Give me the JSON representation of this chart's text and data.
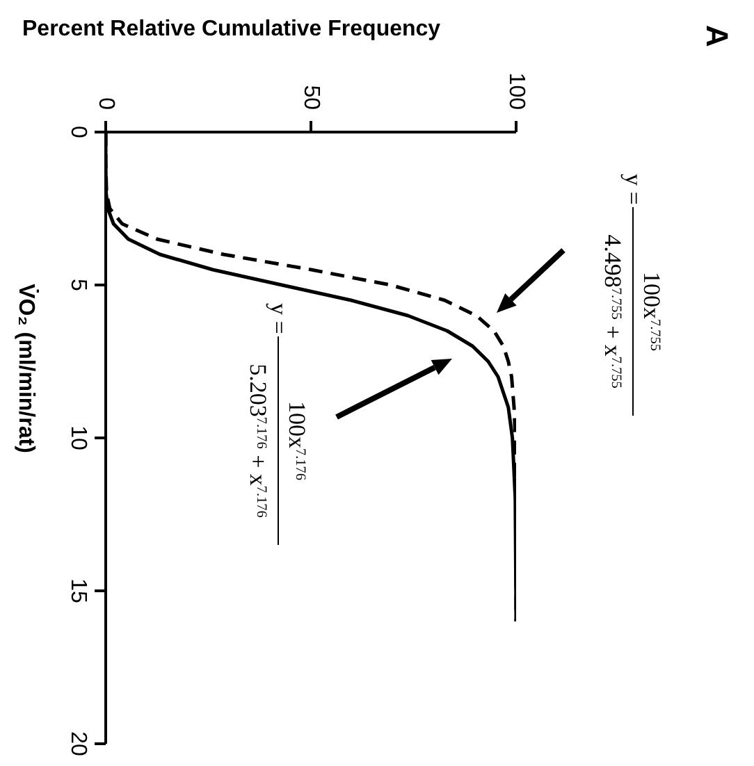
{
  "chart_data": {
    "type": "line",
    "xlabel": "Percent Relative Cumulative Frequency",
    "ylabel": "V̇O₂ (ml/min/rat)",
    "xlim": [
      0,
      100
    ],
    "xticks": [
      0,
      50,
      100
    ],
    "ylim": [
      20,
      0
    ],
    "yticks": [
      0,
      5,
      10,
      15,
      20
    ],
    "grid": false,
    "legend": false,
    "marker": "none",
    "series": [
      {
        "color": "#000000",
        "line_style": "dashed",
        "x": [
          0,
          0,
          0.2,
          1,
          4,
          12.5,
          28.7,
          50.1,
          69.4,
          82.6,
          90.3,
          94.6,
          96.9,
          98.1,
          98.9,
          99.5,
          99.8,
          100,
          100
        ],
        "values": [
          0,
          1,
          2,
          2.5,
          3,
          3.5,
          4,
          4.5,
          5,
          5.5,
          6,
          6.5,
          7,
          7.5,
          8,
          9,
          10,
          12,
          16
        ]
      },
      {
        "color": "#000000",
        "line_style": "solid",
        "x": [
          0,
          0,
          0.1,
          0.5,
          1.9,
          5.5,
          13.2,
          26.1,
          42.9,
          59.8,
          73.6,
          83.2,
          89.4,
          93.2,
          95.6,
          98.1,
          99.1,
          99.8,
          100
        ],
        "values": [
          0,
          1,
          2,
          2.5,
          3,
          3.5,
          4,
          4.5,
          5,
          5.5,
          6,
          6.5,
          7,
          7.5,
          8,
          9,
          10,
          12,
          16
        ]
      }
    ],
    "annotations": [
      "A",
      "y =",
      "100x$^{7.755}$",
      "4.498$^{7.755}$ + x$^{7.755}$",
      "y =",
      "100x$^{7.176}$",
      "5.203$^{7.176}$ + x$^{7.176}$"
    ]
  }
}
